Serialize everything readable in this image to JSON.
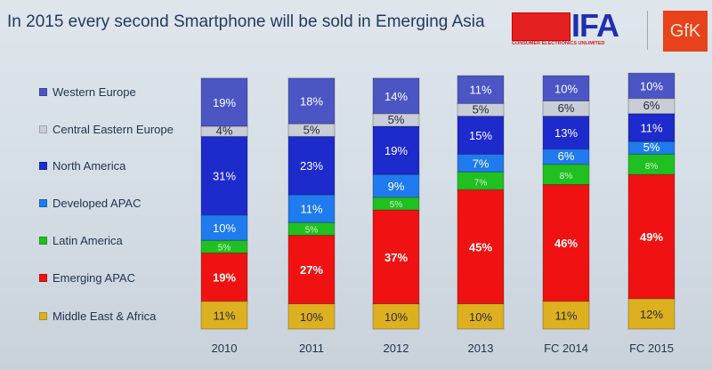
{
  "chart_data": {
    "type": "stacked-bar",
    "title": "In 2015 every second Smartphone will be sold in Emerging Asia",
    "categories": [
      "2010",
      "2011",
      "2012",
      "2013",
      "FC 2014",
      "FC 2015"
    ],
    "unit": "%",
    "legend_position": "left",
    "series": [
      {
        "name": "Western Europe",
        "color": "#4b56c4",
        "values": [
          19,
          18,
          14,
          11,
          10,
          10
        ]
      },
      {
        "name": "Central Eastern Europe",
        "color": "#c9cdd6",
        "values": [
          4,
          5,
          5,
          5,
          6,
          6
        ]
      },
      {
        "name": "North America",
        "color": "#1d2bcc",
        "values": [
          31,
          23,
          19,
          15,
          13,
          11
        ]
      },
      {
        "name": "Developed APAC",
        "color": "#1f7bee",
        "values": [
          10,
          11,
          9,
          7,
          6,
          5
        ]
      },
      {
        "name": "Latin America",
        "color": "#20c020",
        "values": [
          5,
          5,
          5,
          7,
          8,
          8
        ]
      },
      {
        "name": "Emerging APAC",
        "color": "#f01212",
        "values": [
          19,
          27,
          37,
          45,
          46,
          49
        ]
      },
      {
        "name": "Middle East & Africa",
        "color": "#ddb020",
        "values": [
          11,
          10,
          10,
          10,
          11,
          12
        ]
      }
    ]
  },
  "logos": {
    "ifa": "IFA",
    "ifa_sub": "CONSUMER ELECTRONICS UNLIMITED",
    "gfk": "GfK"
  }
}
